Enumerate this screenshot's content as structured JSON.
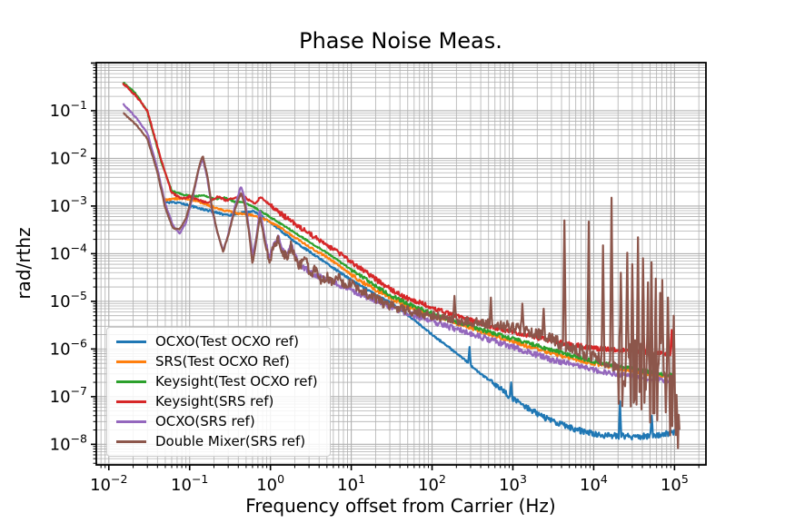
{
  "chart_data": {
    "type": "line",
    "title": "Phase Noise Meas.",
    "xlabel": "Frequency offset from Carrier (Hz)",
    "ylabel": "rad/rthz",
    "xscale": "log",
    "yscale": "log",
    "xlim": [
      0.007,
      245000
    ],
    "ylim": [
      3.7e-09,
      1.02
    ],
    "x_tick_base": 10,
    "x_tick_exponents": [
      -2,
      -1,
      0,
      1,
      2,
      3,
      4,
      5
    ],
    "y_tick_exponents": [
      -1,
      -2,
      -3,
      -4,
      -5,
      -6,
      -7,
      -8
    ],
    "grid": "both",
    "grid_color": "#b0b0b0",
    "legend_position": "lower-left",
    "series": [
      {
        "name": "OCXO(Test OCXO ref)",
        "color": "#1f77b4",
        "noise": [
          [
            0.05,
            0.02
          ],
          [
            500,
            0.06
          ]
        ],
        "points": [
          [
            0.05,
            0.0012
          ],
          [
            0.08,
            0.00115
          ],
          [
            0.13,
            0.0009
          ],
          [
            0.2,
            0.00075
          ],
          [
            0.3,
            0.00063
          ],
          [
            0.45,
            0.00072
          ],
          [
            0.6,
            0.00078
          ],
          [
            0.8,
            0.0006
          ],
          [
            1,
            0.00045
          ],
          [
            1.5,
            0.00026
          ],
          [
            2.2,
            0.00016
          ],
          [
            3.5,
            9.5e-05
          ],
          [
            5,
            6.2e-05
          ],
          [
            8,
            3.6e-05
          ],
          [
            12,
            2.3e-05
          ],
          [
            20,
            1.4e-05
          ],
          [
            30,
            9.5e-06
          ],
          [
            45,
            6e-06
          ],
          [
            70,
            3.3e-06
          ],
          [
            100,
            2e-06
          ],
          [
            160,
            1.1e-06
          ],
          [
            250,
            6e-07
          ],
          [
            400,
            3e-07
          ],
          [
            650,
            1.6e-07
          ],
          [
            1000,
            9e-08
          ],
          [
            1600,
            5.5e-08
          ],
          [
            2500,
            3.6e-08
          ],
          [
            4000,
            2.6e-08
          ],
          [
            7000,
            1.9e-08
          ],
          [
            12000,
            1.55e-08
          ],
          [
            30000,
            1.45e-08
          ],
          [
            60000,
            1.5e-08
          ],
          [
            115000,
            1.9e-08
          ]
        ],
        "spikes": [
          [
            290,
            1.1e-06
          ],
          [
            950,
            2e-07
          ],
          [
            21000,
            8e-08
          ],
          [
            52000,
            4e-08
          ]
        ]
      },
      {
        "name": "SRS(Test OCXO Ref)",
        "color": "#ff7f0e",
        "noise": [
          [
            0.05,
            0.02
          ],
          [
            10,
            0.04
          ]
        ],
        "points": [
          [
            0.05,
            0.00135
          ],
          [
            0.08,
            0.00145
          ],
          [
            0.12,
            0.0013
          ],
          [
            0.18,
            0.001
          ],
          [
            0.28,
            0.0008
          ],
          [
            0.4,
            0.0007
          ],
          [
            0.6,
            0.00065
          ],
          [
            0.9,
            0.0005
          ],
          [
            1.3,
            0.00036
          ],
          [
            2,
            0.00022
          ],
          [
            3,
            0.00014
          ],
          [
            5,
            8.5e-05
          ],
          [
            8,
            4.8e-05
          ],
          [
            12,
            2.9e-05
          ],
          [
            20,
            1.75e-05
          ],
          [
            30,
            1.2e-05
          ],
          [
            50,
            8e-06
          ],
          [
            90,
            5.5e-06
          ],
          [
            160,
            4e-06
          ],
          [
            300,
            2.8e-06
          ],
          [
            600,
            1.9e-06
          ],
          [
            1200,
            1.3e-06
          ],
          [
            2500,
            9e-07
          ],
          [
            5000,
            6.5e-07
          ],
          [
            10000,
            5e-07
          ],
          [
            20000,
            4e-07
          ],
          [
            50000,
            3e-07
          ],
          [
            100000,
            2.6e-07
          ]
        ],
        "spikes": []
      },
      {
        "name": "Keysight(Test OCXO ref)",
        "color": "#2ca02c",
        "noise": [
          [
            0.015,
            0.015
          ],
          [
            10,
            0.04
          ]
        ],
        "points": [
          [
            0.015,
            0.4
          ],
          [
            0.022,
            0.22
          ],
          [
            0.03,
            0.095
          ],
          [
            0.045,
            0.008
          ],
          [
            0.06,
            0.0021
          ],
          [
            0.08,
            0.00175
          ],
          [
            0.11,
            0.0016
          ],
          [
            0.15,
            0.00165
          ],
          [
            0.2,
            0.0014
          ],
          [
            0.27,
            0.0015
          ],
          [
            0.35,
            0.00125
          ],
          [
            0.5,
            0.00115
          ],
          [
            0.7,
            0.00085
          ],
          [
            1,
            0.00058
          ],
          [
            1.5,
            0.00038
          ],
          [
            2.2,
            0.00025
          ],
          [
            3.5,
            0.00015
          ],
          [
            5,
            0.000105
          ],
          [
            8,
            6e-05
          ],
          [
            12,
            3.8e-05
          ],
          [
            20,
            2.1e-05
          ],
          [
            30,
            1.35e-05
          ],
          [
            50,
            9e-06
          ],
          [
            90,
            6e-06
          ],
          [
            160,
            4.3e-06
          ],
          [
            300,
            3e-06
          ],
          [
            600,
            2.1e-06
          ],
          [
            1200,
            1.5e-06
          ],
          [
            2500,
            1.05e-06
          ],
          [
            5000,
            7.5e-07
          ],
          [
            10000,
            5.5e-07
          ],
          [
            20000,
            4.3e-07
          ],
          [
            50000,
            3.3e-07
          ],
          [
            100000,
            2.8e-07
          ]
        ],
        "spikes": []
      },
      {
        "name": "Keysight(SRS ref)",
        "color": "#d62728",
        "noise": [
          [
            0.015,
            0.02
          ],
          [
            1,
            0.05
          ],
          [
            10000,
            0.05
          ]
        ],
        "points": [
          [
            0.015,
            0.38
          ],
          [
            0.022,
            0.2
          ],
          [
            0.03,
            0.1
          ],
          [
            0.045,
            0.0085
          ],
          [
            0.06,
            0.0019
          ],
          [
            0.08,
            0.0014
          ],
          [
            0.1,
            0.0016
          ],
          [
            0.13,
            0.00135
          ],
          [
            0.17,
            0.00115
          ],
          [
            0.22,
            0.0016
          ],
          [
            0.28,
            0.0013
          ],
          [
            0.36,
            0.0015
          ],
          [
            0.45,
            0.00175
          ],
          [
            0.55,
            0.0013
          ],
          [
            0.65,
            0.0011
          ],
          [
            0.75,
            0.00155
          ],
          [
            0.9,
            0.0012
          ],
          [
            1.1,
            0.0009
          ],
          [
            1.5,
            0.0006
          ],
          [
            2.2,
            0.00038
          ],
          [
            3.2,
            0.00025
          ],
          [
            5,
            0.00015
          ],
          [
            7,
            0.000105
          ],
          [
            10,
            6.8e-05
          ],
          [
            15,
            4.2e-05
          ],
          [
            22,
            2.6e-05
          ],
          [
            32,
            1.7e-05
          ],
          [
            50,
            1.15e-05
          ],
          [
            90,
            8e-06
          ],
          [
            160,
            5.5e-06
          ],
          [
            300,
            4e-06
          ],
          [
            600,
            2.8e-06
          ],
          [
            1200,
            2.1e-06
          ],
          [
            2500,
            1.6e-06
          ],
          [
            5000,
            1.25e-06
          ],
          [
            10000,
            1.05e-06
          ],
          [
            20000,
            9.5e-07
          ],
          [
            50000,
            8.5e-07
          ],
          [
            100000,
            8e-07
          ]
        ],
        "spikes": [
          [
            41000,
            2.3e-06
          ],
          [
            93000,
            2.5e-06
          ]
        ]
      },
      {
        "name": "OCXO(SRS ref)",
        "color": "#9467bd",
        "noise": [
          [
            0.015,
            0.012
          ],
          [
            0.9,
            0.06
          ],
          [
            5000,
            0.05
          ]
        ],
        "points": [
          [
            0.015,
            0.14
          ],
          [
            0.022,
            0.07
          ],
          [
            0.03,
            0.034
          ],
          [
            0.04,
            0.006
          ],
          [
            0.05,
            0.0011
          ],
          [
            0.062,
            0.0004
          ],
          [
            0.075,
            0.00026
          ],
          [
            0.09,
            0.00045
          ],
          [
            0.11,
            0.0016
          ],
          [
            0.13,
            0.006
          ],
          [
            0.145,
            0.0095
          ],
          [
            0.165,
            0.004
          ],
          [
            0.19,
            0.0008
          ],
          [
            0.22,
            0.00028
          ],
          [
            0.26,
            0.000115
          ],
          [
            0.3,
            0.00025
          ],
          [
            0.36,
            0.0009
          ],
          [
            0.43,
            0.0026
          ],
          [
            0.48,
            0.0015
          ],
          [
            0.54,
            0.00035
          ],
          [
            0.6,
            9e-05
          ],
          [
            0.67,
            0.00022
          ],
          [
            0.74,
            0.00085
          ],
          [
            0.8,
            0.0004
          ],
          [
            0.88,
            0.00016
          ],
          [
            0.97,
            8e-05
          ],
          [
            1.1,
            0.00015
          ],
          [
            1.25,
            0.00024
          ],
          [
            1.4,
            0.00012
          ],
          [
            1.6,
            9e-05
          ],
          [
            1.8,
            0.00016
          ],
          [
            2,
            9e-05
          ],
          [
            2.3,
            6e-05
          ],
          [
            2.7,
            4.8e-05
          ],
          [
            3.5,
            3.6e-05
          ],
          [
            5,
            2.8e-05
          ],
          [
            8,
            2e-05
          ],
          [
            12,
            1.5e-05
          ],
          [
            20,
            1.05e-05
          ],
          [
            32,
            7.5e-06
          ],
          [
            60,
            5e-06
          ],
          [
            100,
            3.8e-06
          ],
          [
            200,
            2.6e-06
          ],
          [
            400,
            1.8e-06
          ],
          [
            800,
            1.25e-06
          ],
          [
            1600,
            8.5e-07
          ],
          [
            3000,
            6e-07
          ],
          [
            6000,
            4.5e-07
          ],
          [
            12000,
            3.4e-07
          ],
          [
            30000,
            2.6e-07
          ],
          [
            60000,
            2.3e-07
          ],
          [
            100000,
            2.1e-07
          ]
        ],
        "spikes": []
      },
      {
        "name": "Double Mixer(SRS ref)",
        "color": "#8c564b",
        "noise": [
          [
            0.015,
            0.012
          ],
          [
            0.9,
            0.1
          ],
          [
            800,
            0.13
          ],
          [
            20000,
            0.8
          ]
        ],
        "points": [
          [
            0.015,
            0.09
          ],
          [
            0.022,
            0.05
          ],
          [
            0.03,
            0.026
          ],
          [
            0.04,
            0.005
          ],
          [
            0.05,
            0.0009
          ],
          [
            0.062,
            0.00034
          ],
          [
            0.075,
            0.00032
          ],
          [
            0.09,
            0.00055
          ],
          [
            0.11,
            0.0018
          ],
          [
            0.13,
            0.0065
          ],
          [
            0.145,
            0.0115
          ],
          [
            0.165,
            0.0045
          ],
          [
            0.19,
            0.0009
          ],
          [
            0.22,
            0.00029
          ],
          [
            0.26,
            0.00011
          ],
          [
            0.3,
            0.00024
          ],
          [
            0.36,
            0.0008
          ],
          [
            0.43,
            0.0019
          ],
          [
            0.48,
            0.0011
          ],
          [
            0.54,
            0.0003
          ],
          [
            0.6,
            6e-05
          ],
          [
            0.67,
            0.00019
          ],
          [
            0.74,
            0.0006
          ],
          [
            0.8,
            0.00032
          ],
          [
            0.88,
            0.00013
          ],
          [
            0.97,
            7.5e-05
          ],
          [
            1.1,
            0.00013
          ],
          [
            1.25,
            0.00022
          ],
          [
            1.4,
            0.00011
          ],
          [
            1.6,
            8e-05
          ],
          [
            1.8,
            0.00015
          ],
          [
            2,
            8.5e-05
          ],
          [
            2.3,
            5.5e-05
          ],
          [
            2.7,
            9e-05
          ],
          [
            3.1,
            3.2e-05
          ],
          [
            3.6,
            5e-05
          ],
          [
            4.2,
            2.6e-05
          ],
          [
            5,
            3.4e-05
          ],
          [
            6,
            2.4e-05
          ],
          [
            7,
            3.2e-05
          ],
          [
            8.5,
            2e-05
          ],
          [
            10,
            2.4e-05
          ],
          [
            12,
            1.7e-05
          ],
          [
            15,
            1.5e-05
          ],
          [
            20,
            1.15e-05
          ],
          [
            27,
            8.5e-06
          ],
          [
            40,
            7e-06
          ],
          [
            60,
            6e-06
          ],
          [
            100,
            5e-06
          ],
          [
            180,
            4.2e-06
          ],
          [
            350,
            3.6e-06
          ],
          [
            700,
            3.1e-06
          ],
          [
            1200,
            2.7e-06
          ],
          [
            2000,
            2.1e-06
          ],
          [
            3500,
            1.4e-06
          ],
          [
            6000,
            1e-06
          ],
          [
            10000,
            7e-07
          ],
          [
            18000,
            4.5e-07
          ],
          [
            30000,
            2.8e-07
          ],
          [
            50000,
            1.6e-07
          ],
          [
            75000,
            8e-08
          ],
          [
            100000,
            3.5e-08
          ],
          [
            115000,
            2.5e-08
          ]
        ],
        "spikes": [
          [
            190,
            1.3e-05
          ],
          [
            530,
            1.2e-05
          ],
          [
            1300,
            9e-06
          ],
          [
            2400,
            7e-06
          ],
          [
            4300,
            0.0005
          ],
          [
            8600,
            0.00047
          ],
          [
            13000,
            0.00015
          ],
          [
            16500,
            0.0015
          ],
          [
            21500,
            4e-05
          ],
          [
            26000,
            0.000105
          ],
          [
            30000,
            6e-05
          ],
          [
            35000,
            0.00022
          ],
          [
            41000,
            8e-05
          ],
          [
            47000,
            2.5e-05
          ],
          [
            52000,
            6.6e-05
          ],
          [
            59000,
            3e-05
          ],
          [
            66000,
            1.5e-05
          ],
          [
            71000,
            2.8e-05
          ],
          [
            83000,
            1.2e-05
          ],
          [
            97000,
            5e-06
          ]
        ]
      }
    ]
  }
}
